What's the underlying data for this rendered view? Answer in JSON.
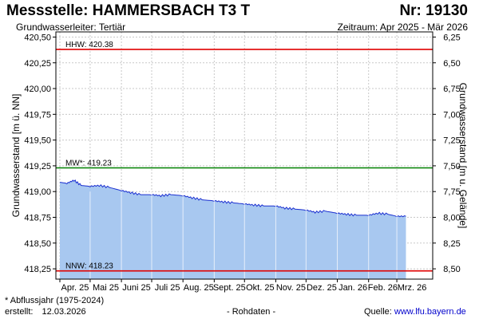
{
  "header": {
    "title": "Messstelle: HAMMERSBACH T3 T",
    "nr": "Nr: 19130",
    "aquifer": "Grundwasserleiter: Tertiär",
    "period": "Zeitraum: Apr 2025 - Mär 2026"
  },
  "footer": {
    "note": "* Abflussjahr (1975-2024)",
    "created_label": "erstellt:",
    "created_date": "12.03.2026",
    "raw": "- Rohdaten -",
    "source_label": "Quelle:",
    "source_link": "www.lfu.bayern.de"
  },
  "colors": {
    "fill": "#a8c8f0",
    "line": "#1a2fd0",
    "hhw": "#e00000",
    "mw": "#008000",
    "nnw": "#e00000",
    "grid": "#c8c8c8"
  },
  "chart_data": {
    "type": "area",
    "ylabel_left": "Grundwasserstand [m ü. NN]",
    "ylabel_right": "Grundwasserstand [m u. Gelände]",
    "ylim": [
      418.15,
      420.55
    ],
    "yticks_left": [
      "420,50",
      "420,25",
      "420,00",
      "419,75",
      "419,50",
      "419,25",
      "419,00",
      "418,75",
      "418,50",
      "418,25"
    ],
    "yticks_right": [
      "6,25",
      "6,50",
      "6,75",
      "7,00",
      "7,25",
      "7,50",
      "7,75",
      "8,00",
      "8,25",
      "8,50"
    ],
    "xticks": [
      "Apr. 25",
      "Mai 25",
      "Juni 25",
      "Juli 25",
      "Aug. 25",
      "Sept. 25",
      "Okt. 25",
      "Nov. 25",
      "Dez. 25",
      "Jan. 26",
      "Feb. 26",
      "Mrz. 26"
    ],
    "reference_lines": [
      {
        "label": "HHW: 420.38",
        "value": 420.38
      },
      {
        "label": "MW*: 419.23",
        "value": 419.23
      },
      {
        "label": "NNW: 418.23",
        "value": 418.23
      }
    ],
    "series": [
      {
        "x": [
          "2025-04-01",
          "2025-04-08",
          "2025-04-15",
          "2025-04-22",
          "2025-05-01",
          "2025-05-10",
          "2025-05-20",
          "2025-06-01",
          "2025-06-10",
          "2025-06-20",
          "2025-07-01",
          "2025-07-10",
          "2025-07-20",
          "2025-08-01",
          "2025-08-10",
          "2025-08-20",
          "2025-09-01",
          "2025-09-10",
          "2025-09-20",
          "2025-10-01",
          "2025-10-10",
          "2025-10-20",
          "2025-11-01",
          "2025-11-10",
          "2025-11-20",
          "2025-12-01",
          "2025-12-10",
          "2025-12-20",
          "2026-01-01",
          "2026-01-10",
          "2026-01-20",
          "2026-02-01",
          "2026-02-10",
          "2026-02-20",
          "2026-03-01",
          "2026-03-10"
        ],
        "values": [
          419.09,
          419.08,
          419.11,
          419.06,
          419.05,
          419.06,
          419.04,
          419.01,
          418.99,
          418.97,
          418.97,
          418.96,
          418.97,
          418.96,
          418.94,
          418.92,
          418.91,
          418.9,
          418.89,
          418.88,
          418.87,
          418.86,
          418.86,
          418.84,
          418.83,
          418.82,
          418.8,
          418.81,
          418.79,
          418.78,
          418.77,
          418.77,
          418.79,
          418.78,
          418.76,
          418.76
        ]
      }
    ]
  }
}
